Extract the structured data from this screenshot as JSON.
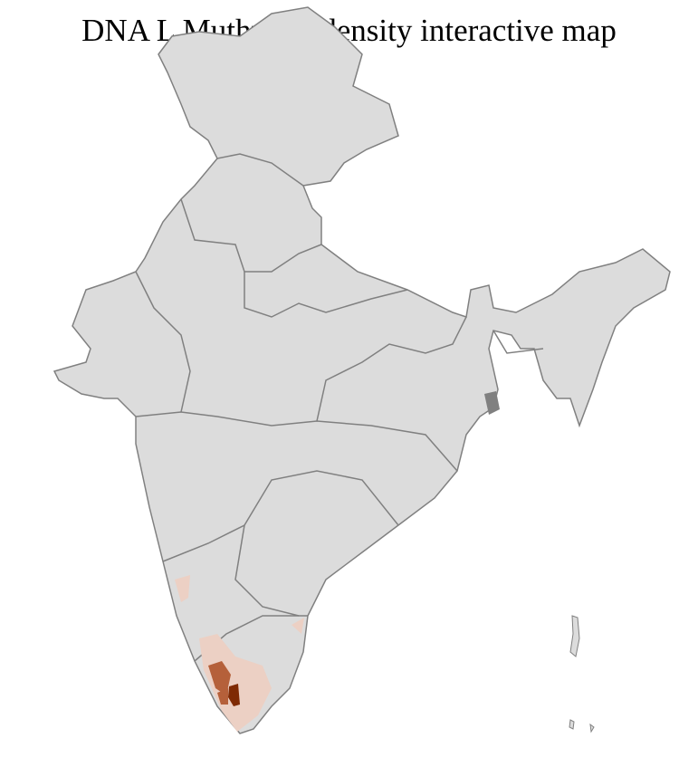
{
  "title": "DNA L Muthuvan density interactive map",
  "colors": {
    "base_fill": "#dcdcdc",
    "district_border": "#ffffff",
    "state_border": "#808080",
    "density_low": "#ecd0c4",
    "density_mid": "#b5603a",
    "density_high": "#7f2a04"
  }
}
